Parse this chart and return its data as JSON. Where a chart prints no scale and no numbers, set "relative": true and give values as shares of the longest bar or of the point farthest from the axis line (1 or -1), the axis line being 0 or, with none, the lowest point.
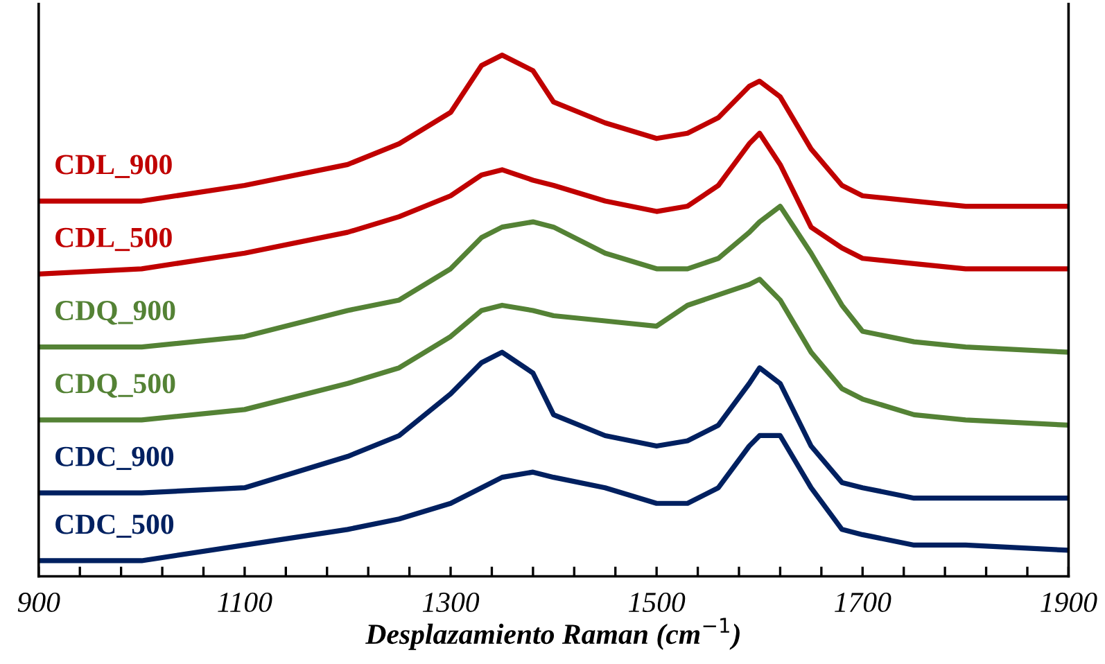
{
  "chart_data": {
    "type": "line",
    "relative": true,
    "xlabel": "Desplazamiento Raman (cm$^{−1}$)",
    "x": [
      900,
      1000,
      1100,
      1200,
      1250,
      1300,
      1330,
      1350,
      1380,
      1400,
      1450,
      1500,
      1530,
      1560,
      1590,
      1600,
      1620,
      1650,
      1680,
      1700,
      1750,
      1800,
      1900
    ],
    "xlim": [
      900,
      1900
    ],
    "xticks": [
      900,
      {
        "value": 940,
        "label": null
      },
      {
        "value": 980,
        "label": null
      },
      {
        "value": 1020,
        "label": null
      },
      {
        "value": 1060,
        "label": null
      },
      1100,
      {
        "value": 1140,
        "label": null
      },
      {
        "value": 1180,
        "label": null
      },
      {
        "value": 1220,
        "label": null
      },
      {
        "value": 1260,
        "label": null
      },
      1300,
      {
        "value": 1340,
        "label": null
      },
      {
        "value": 1380,
        "label": null
      },
      {
        "value": 1420,
        "label": null
      },
      {
        "value": 1460,
        "label": null
      },
      1500,
      {
        "value": 1540,
        "label": null
      },
      {
        "value": 1580,
        "label": null
      },
      {
        "value": 1620,
        "label": null
      },
      {
        "value": 1660,
        "label": null
      },
      1700,
      {
        "value": 1740,
        "label": null
      },
      {
        "value": 1780,
        "label": null
      },
      {
        "value": 1820,
        "label": null
      },
      {
        "value": 1860,
        "label": null
      },
      1900
    ],
    "tick_labels": "x",
    "grid": false,
    "legend": false,
    "marker": "none",
    "line_style": "solid",
    "series": [
      {
        "name": "CDL_900",
        "color": "#c00000",
        "values": [
          0.72,
          0.72,
          0.75,
          0.79,
          0.83,
          0.89,
          0.98,
          1.0,
          0.97,
          0.91,
          0.87,
          0.84,
          0.85,
          0.88,
          0.94,
          0.95,
          0.92,
          0.82,
          0.75,
          0.73,
          0.72,
          0.71,
          0.71
        ]
      },
      {
        "name": "CDL_500",
        "color": "#c00000",
        "values": [
          0.58,
          0.59,
          0.62,
          0.66,
          0.69,
          0.73,
          0.77,
          0.78,
          0.76,
          0.75,
          0.72,
          0.7,
          0.71,
          0.75,
          0.83,
          0.85,
          0.79,
          0.67,
          0.63,
          0.61,
          0.6,
          0.59,
          0.59
        ]
      },
      {
        "name": "CDQ_900",
        "color": "#548235",
        "values": [
          0.44,
          0.44,
          0.46,
          0.51,
          0.53,
          0.59,
          0.65,
          0.67,
          0.68,
          0.67,
          0.62,
          0.59,
          0.59,
          0.61,
          0.66,
          0.68,
          0.71,
          0.62,
          0.52,
          0.47,
          0.45,
          0.44,
          0.43
        ]
      },
      {
        "name": "CDQ_500",
        "color": "#548235",
        "values": [
          0.3,
          0.3,
          0.32,
          0.37,
          0.4,
          0.46,
          0.51,
          0.52,
          0.51,
          0.5,
          0.49,
          0.48,
          0.52,
          0.54,
          0.56,
          0.57,
          0.53,
          0.43,
          0.36,
          0.34,
          0.31,
          0.3,
          0.29
        ]
      },
      {
        "name": "CDC_900",
        "color": "#002060",
        "values": [
          0.16,
          0.16,
          0.17,
          0.23,
          0.27,
          0.35,
          0.41,
          0.43,
          0.39,
          0.31,
          0.27,
          0.25,
          0.26,
          0.29,
          0.37,
          0.4,
          0.37,
          0.25,
          0.18,
          0.17,
          0.15,
          0.15,
          0.15
        ]
      },
      {
        "name": "CDC_500",
        "color": "#002060",
        "values": [
          0.03,
          0.03,
          0.06,
          0.09,
          0.11,
          0.14,
          0.17,
          0.19,
          0.2,
          0.19,
          0.17,
          0.14,
          0.14,
          0.17,
          0.25,
          0.27,
          0.27,
          0.17,
          0.09,
          0.08,
          0.06,
          0.06,
          0.05
        ]
      }
    ]
  }
}
